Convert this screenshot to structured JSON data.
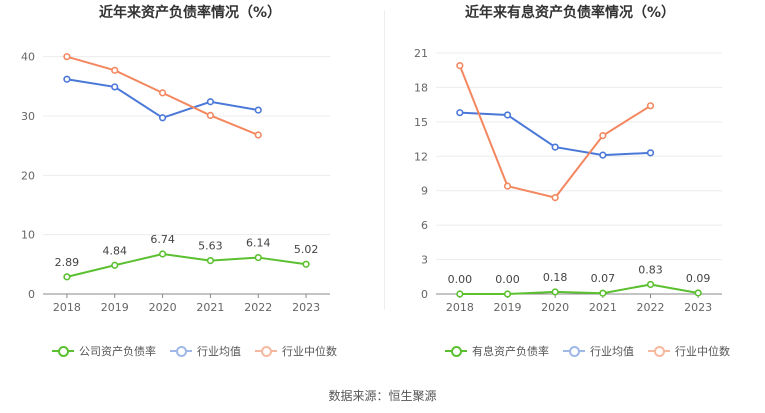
{
  "charts": [
    {
      "title": "近年来资产负债率情况（%）",
      "legend": [
        "公司资产负债率",
        "行业均值",
        "行业中位数"
      ]
    },
    {
      "title": "近年来有息资产负债率情况（%）",
      "legend": [
        "有息资产负债率",
        "行业均值",
        "行业中位数"
      ]
    }
  ],
  "source": "数据来源：恒生聚源",
  "colors": {
    "company": "#5ac02f",
    "mean": "#4a78d8",
    "median": "#f3875f",
    "grid": "#ececec",
    "axis": "#888888",
    "text": "#666666"
  },
  "chart_data": [
    {
      "type": "line",
      "title": "近年来资产负债率情况（%）",
      "categories": [
        "2018",
        "2019",
        "2020",
        "2021",
        "2022",
        "2023"
      ],
      "ylim": [
        0,
        45
      ],
      "yticks": [
        0,
        10,
        20,
        30,
        40
      ],
      "series": [
        {
          "name": "公司资产负债率",
          "values": [
            2.89,
            4.84,
            6.74,
            5.63,
            6.14,
            5.02
          ],
          "labels": [
            "2.89",
            "4.84",
            "6.74",
            "5.63",
            "6.14",
            "5.02"
          ]
        },
        {
          "name": "行业均值",
          "values": [
            36.2,
            34.9,
            29.7,
            32.4,
            31.0,
            null
          ]
        },
        {
          "name": "行业中位数",
          "values": [
            40.0,
            37.7,
            33.9,
            30.1,
            26.8,
            null
          ]
        }
      ]
    },
    {
      "type": "line",
      "title": "近年来有息资产负债率情况（%）",
      "categories": [
        "2018",
        "2019",
        "2020",
        "2021",
        "2022",
        "2023"
      ],
      "ylim": [
        0,
        21
      ],
      "yticks": [
        0,
        3,
        6,
        9,
        12,
        15,
        18,
        21
      ],
      "series": [
        {
          "name": "有息资产负债率",
          "values": [
            0.0,
            0.0,
            0.18,
            0.07,
            0.83,
            0.09
          ],
          "labels": [
            "0.00",
            "0.00",
            "0.18",
            "0.07",
            "0.83",
            "0.09"
          ]
        },
        {
          "name": "行业均值",
          "values": [
            15.8,
            15.6,
            12.8,
            12.1,
            12.3,
            null
          ]
        },
        {
          "name": "行业中位数",
          "values": [
            19.9,
            9.4,
            8.4,
            13.8,
            16.4,
            null
          ]
        }
      ]
    }
  ]
}
